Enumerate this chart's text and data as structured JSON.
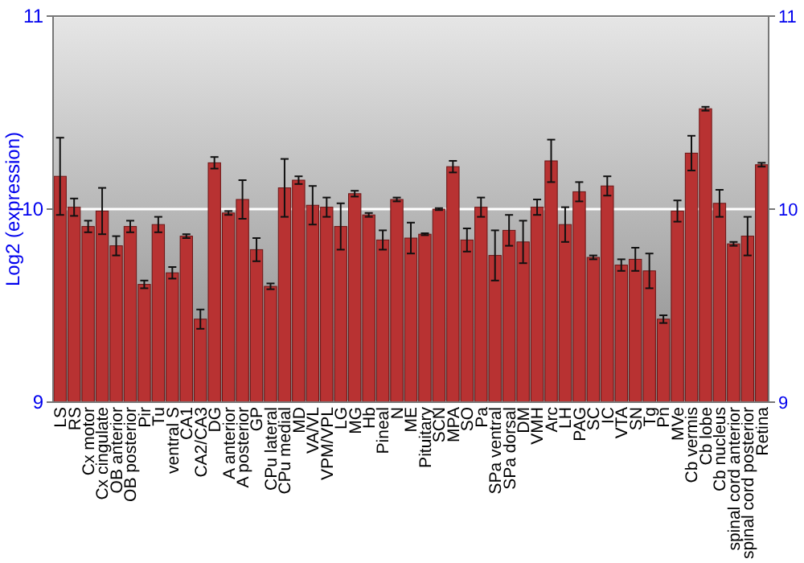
{
  "chart_data": {
    "type": "bar",
    "ylabel": "Log2 (expression)",
    "categories": [
      "LS",
      "RS",
      "Cx motor",
      "Cx cingulate",
      "OB anterior",
      "OB posterior",
      "Pir",
      "Tu",
      "ventral S",
      "CA1",
      "CA2/CA3",
      "DG",
      "A anterior",
      "A posterior",
      "GP",
      "CPu lateral",
      "CPu medial",
      "MD",
      "VA/VL",
      "VPM/VPL",
      "LG",
      "MG",
      "Hb",
      "Pineal",
      "N",
      "ME",
      "Pituitary",
      "SCN",
      "MPA",
      "SO",
      "Pa",
      "SPa ventral",
      "SPa dorsal",
      "DM",
      "VMH",
      "Arc",
      "LH",
      "PAG",
      "SC",
      "IC",
      "VTA",
      "SN",
      "Tg",
      "Pn",
      "MVe",
      "Cb vermis",
      "Cb lobe",
      "Cb nucleus",
      "spinal cord anterior",
      "spinal cord posterior",
      "Retina"
    ],
    "values": [
      10.17,
      10.01,
      9.91,
      9.99,
      9.81,
      9.91,
      9.61,
      9.92,
      9.67,
      9.86,
      9.43,
      10.24,
      9.98,
      10.05,
      9.79,
      9.6,
      10.11,
      10.15,
      10.02,
      10.01,
      9.91,
      10.08,
      9.97,
      9.84,
      10.05,
      9.85,
      9.87,
      10.0,
      10.22,
      9.84,
      10.01,
      9.76,
      9.89,
      9.83,
      10.01,
      10.25,
      9.92,
      10.09,
      9.75,
      10.12,
      9.71,
      9.74,
      9.68,
      9.43,
      9.99,
      10.29,
      10.52,
      10.03,
      9.82,
      9.86,
      10.23
    ],
    "errors": [
      0.2,
      0.045,
      0.03,
      0.12,
      0.05,
      0.03,
      0.02,
      0.04,
      0.03,
      0.01,
      0.05,
      0.03,
      0.01,
      0.1,
      0.06,
      0.015,
      0.15,
      0.02,
      0.1,
      0.05,
      0.12,
      0.015,
      0.01,
      0.05,
      0.01,
      0.08,
      0.005,
      0.005,
      0.03,
      0.06,
      0.05,
      0.13,
      0.08,
      0.11,
      0.04,
      0.11,
      0.09,
      0.05,
      0.01,
      0.05,
      0.03,
      0.06,
      0.09,
      0.02,
      0.055,
      0.09,
      0.01,
      0.07,
      0.01,
      0.1,
      0.01
    ],
    "color": "#b83232",
    "ylim": [
      9,
      11
    ],
    "yticks": [
      9,
      10,
      11
    ],
    "y2lim": [
      9,
      11
    ],
    "y2ticks": [
      9,
      10,
      11
    ],
    "grid": "y"
  }
}
